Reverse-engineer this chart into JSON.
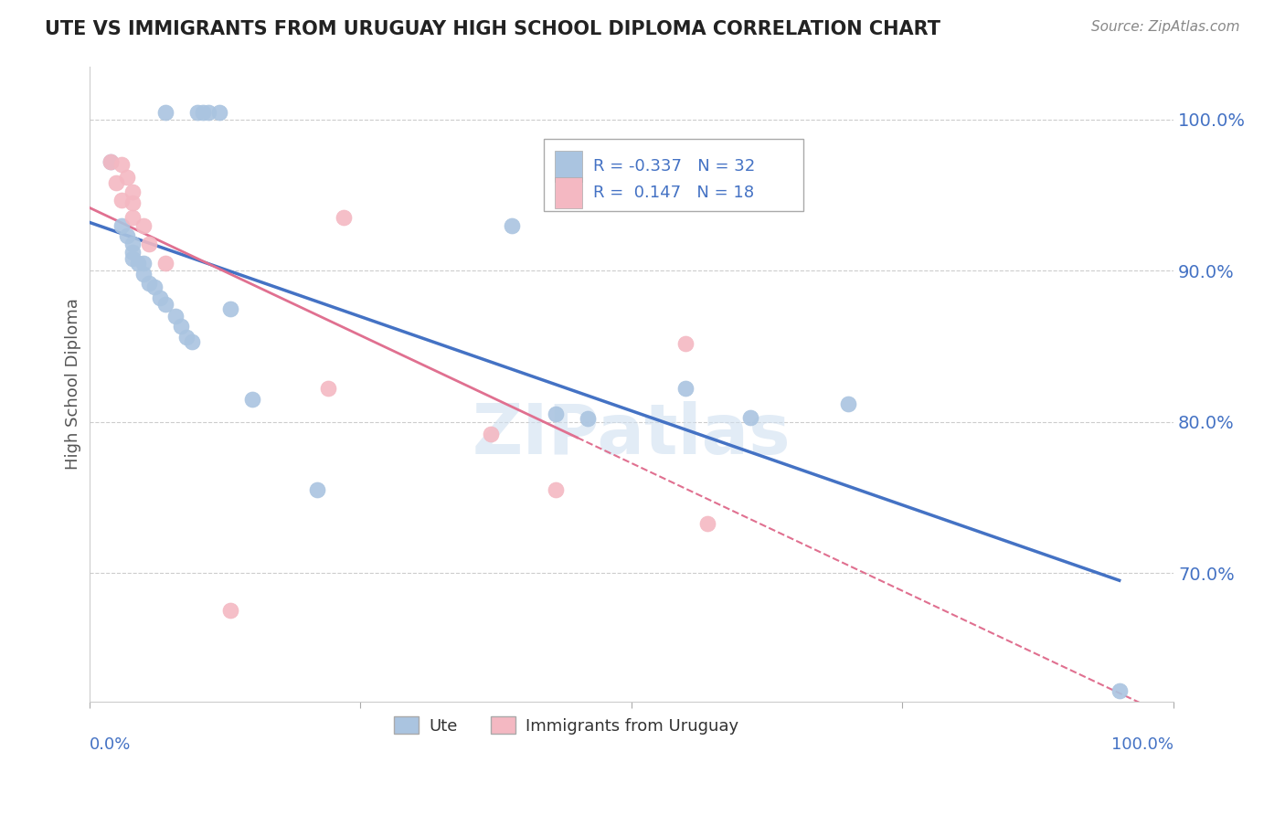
{
  "title": "UTE VS IMMIGRANTS FROM URUGUAY HIGH SCHOOL DIPLOMA CORRELATION CHART",
  "source": "Source: ZipAtlas.com",
  "ylabel": "High School Diploma",
  "watermark": "ZIPatlas",
  "legend_ute_r": "-0.337",
  "legend_ute_n": "32",
  "legend_imm_r": "0.147",
  "legend_imm_n": "18",
  "ute_color": "#aac4e0",
  "imm_color": "#f4b8c2",
  "trendline_ute_color": "#4472c4",
  "trendline_imm_color": "#e07090",
  "axis_label_color": "#4472c4",
  "title_color": "#222222",
  "grid_color": "#cccccc",
  "xlim": [
    0.0,
    1.0
  ],
  "ylim": [
    0.615,
    1.035
  ],
  "yticks": [
    0.7,
    0.8,
    0.9,
    1.0
  ],
  "ytick_labels": [
    "70.0%",
    "80.0%",
    "90.0%",
    "100.0%"
  ],
  "ute_x": [
    0.07,
    0.1,
    0.105,
    0.11,
    0.12,
    0.02,
    0.03,
    0.035,
    0.04,
    0.04,
    0.04,
    0.045,
    0.05,
    0.05,
    0.055,
    0.06,
    0.065,
    0.07,
    0.08,
    0.085,
    0.09,
    0.095,
    0.13,
    0.15,
    0.21,
    0.39,
    0.43,
    0.46,
    0.55,
    0.61,
    0.7,
    0.95
  ],
  "ute_y": [
    1.005,
    1.005,
    1.005,
    1.005,
    1.005,
    0.972,
    0.93,
    0.923,
    0.918,
    0.912,
    0.908,
    0.905,
    0.905,
    0.898,
    0.892,
    0.889,
    0.882,
    0.878,
    0.87,
    0.863,
    0.856,
    0.853,
    0.875,
    0.815,
    0.755,
    0.93,
    0.805,
    0.802,
    0.822,
    0.803,
    0.812,
    0.622
  ],
  "imm_x": [
    0.03,
    0.035,
    0.04,
    0.04,
    0.04,
    0.05,
    0.055,
    0.07,
    0.13,
    0.22,
    0.235,
    0.37,
    0.43,
    0.55,
    0.57,
    0.02,
    0.025,
    0.03
  ],
  "imm_y": [
    0.97,
    0.962,
    0.952,
    0.945,
    0.935,
    0.93,
    0.918,
    0.905,
    0.675,
    0.822,
    0.935,
    0.792,
    0.755,
    0.852,
    0.733,
    0.972,
    0.958,
    0.947
  ]
}
